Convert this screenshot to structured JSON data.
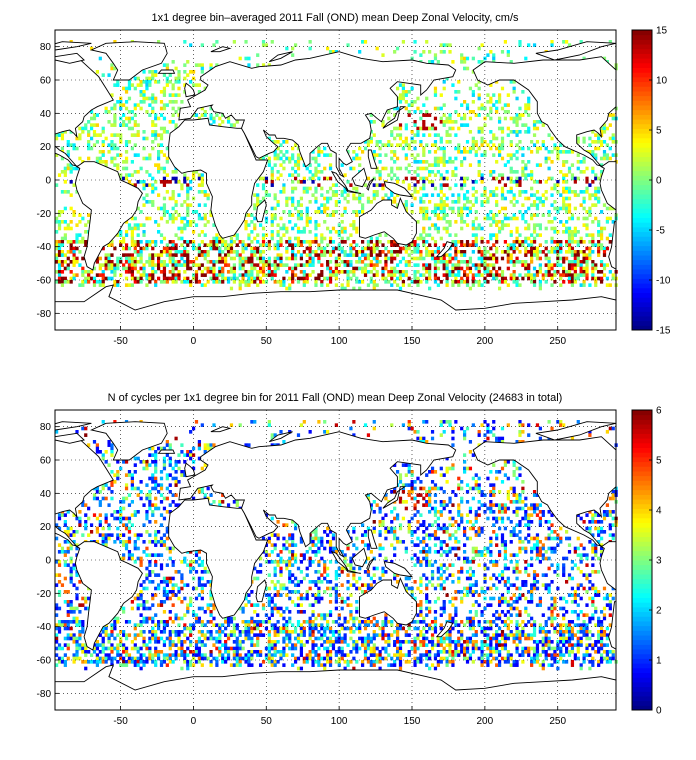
{
  "panels": [
    {
      "title": "1x1 degree bin–averaged 2011 Fall (OND) mean Deep Zonal Velocity, cm/s",
      "colorbar": {
        "min": -15,
        "max": 15,
        "ticks": [
          "15",
          "10",
          "5",
          "0",
          "-5",
          "-10",
          "-15"
        ]
      },
      "data_kind": "velocity"
    },
    {
      "title": "N of cycles per 1x1 degree bin for 2011 Fall (OND) mean Deep Zonal Velocity (24683 in total)",
      "colorbar": {
        "min": 0,
        "max": 6,
        "ticks": [
          "6",
          "5",
          "4",
          "3",
          "2",
          "1",
          "0"
        ]
      },
      "data_kind": "count"
    }
  ],
  "axes": {
    "xlim": [
      -95,
      290
    ],
    "ylim": [
      -90,
      90
    ],
    "x_ticks": [
      "-50",
      "0",
      "50",
      "100",
      "150",
      "200",
      "250"
    ],
    "y_ticks": [
      "80",
      "60",
      "40",
      "20",
      "0",
      "-20",
      "-40",
      "-60",
      "-80"
    ],
    "grid": "dotted"
  },
  "colormap": "jet"
}
